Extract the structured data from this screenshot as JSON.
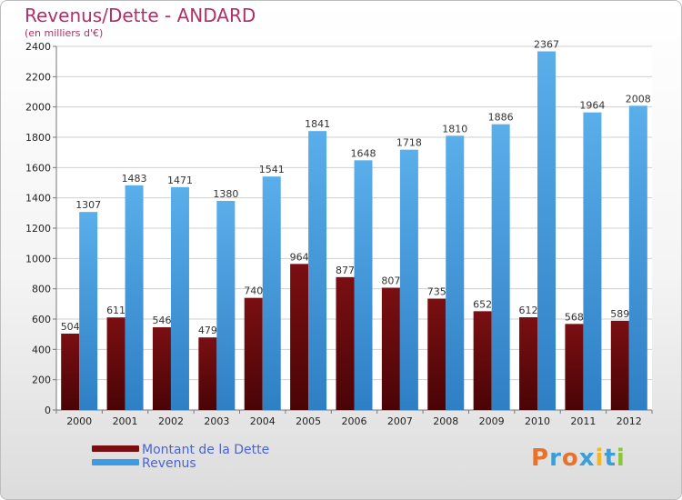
{
  "header": {
    "title": "Revenus/Dette - ANDARD",
    "subtitle": "(en milliers d'€)"
  },
  "legend": {
    "items": [
      {
        "label": "Montant de la Dette",
        "color": "#7a0f12"
      },
      {
        "label": "Revenus",
        "color": "#3d9be3"
      }
    ]
  },
  "logo": {
    "text": "Proxiti",
    "colors": [
      "#e8722a",
      "#3a9fd8",
      "#e8722a",
      "#3a9fd8",
      "#f2b81c",
      "#3a9fd8",
      "#8cc63f"
    ]
  },
  "chart_data": {
    "type": "bar",
    "title": "Revenus/Dette - ANDARD",
    "subtitle": "(en milliers d'€)",
    "categories": [
      "2000",
      "2001",
      "2002",
      "2003",
      "2004",
      "2005",
      "2006",
      "2007",
      "2008",
      "2009",
      "2010",
      "2011",
      "2012"
    ],
    "series": [
      {
        "name": "Montant de la Dette",
        "color": "#7a0f12",
        "values": [
          504,
          611,
          546,
          479,
          740,
          964,
          877,
          807,
          735,
          652,
          612,
          568,
          589
        ]
      },
      {
        "name": "Revenus",
        "color": "#3d9be3",
        "values": [
          1307,
          1483,
          1471,
          1380,
          1541,
          1841,
          1648,
          1718,
          1810,
          1886,
          2367,
          1964,
          2008
        ]
      }
    ],
    "ylim": [
      0,
      2400
    ],
    "yticks": [
      0,
      200,
      400,
      600,
      800,
      1000,
      1200,
      1400,
      1600,
      1800,
      2000,
      2200,
      2400
    ],
    "grid": true,
    "legend_position": "bottom-left"
  }
}
